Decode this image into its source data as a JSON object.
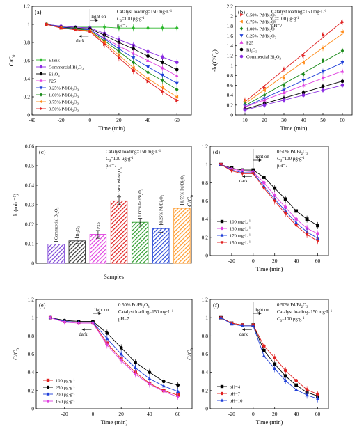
{
  "chart_data": [
    {
      "panel": "(a)",
      "type": "line",
      "xlabel": "Time (min)",
      "ylabel": "C/C0",
      "xlim": [
        -40,
        70
      ],
      "ylim": [
        0,
        1.2
      ],
      "xticks": [
        -40,
        -20,
        0,
        20,
        40,
        60
      ],
      "yticks": [
        0,
        0.2,
        0.4,
        0.6,
        0.8,
        1.0,
        1.2
      ],
      "annotations": [
        "Catalyst loading=150 mg·L⁻¹",
        "C0=100 μg·g⁻¹",
        "pH=7",
        "light on",
        "dark"
      ],
      "legend_position": "bottom-left",
      "x": [
        -30,
        -20,
        -10,
        0,
        10,
        20,
        30,
        40,
        50,
        60
      ],
      "series": [
        {
          "name": "Blank",
          "color": "#2db82d",
          "marker": "diamond",
          "values": [
            1.0,
            0.98,
            0.97,
            0.97,
            0.97,
            0.96,
            0.96,
            0.96,
            0.96,
            0.96
          ]
        },
        {
          "name": "Commercial Bi2O3",
          "color": "#8a2be2",
          "marker": "circle",
          "values": [
            1.0,
            0.98,
            0.97,
            0.96,
            0.9,
            0.83,
            0.77,
            0.7,
            0.64,
            0.58
          ]
        },
        {
          "name": "Bi2O3",
          "color": "#000000",
          "marker": "circle",
          "values": [
            1.0,
            0.97,
            0.96,
            0.95,
            0.88,
            0.8,
            0.73,
            0.65,
            0.58,
            0.5
          ]
        },
        {
          "name": "P25",
          "color": "#e040e0",
          "marker": "triangle-up",
          "values": [
            1.0,
            0.96,
            0.95,
            0.94,
            0.85,
            0.76,
            0.68,
            0.6,
            0.52,
            0.43
          ]
        },
        {
          "name": "0.25% Pd/Bi2O3",
          "color": "#1f3fd8",
          "marker": "triangle-down",
          "values": [
            1.0,
            0.97,
            0.95,
            0.94,
            0.84,
            0.73,
            0.63,
            0.53,
            0.44,
            0.35
          ]
        },
        {
          "name": "1.00% Pd/Bi2O3",
          "color": "#1a8a1a",
          "marker": "diamond",
          "values": [
            1.0,
            0.96,
            0.95,
            0.93,
            0.82,
            0.7,
            0.58,
            0.47,
            0.38,
            0.28
          ]
        },
        {
          "name": "0.75% Pd/Bi2O3",
          "color": "#ff8c1a",
          "marker": "triangle-left",
          "values": [
            1.0,
            0.96,
            0.94,
            0.93,
            0.8,
            0.66,
            0.52,
            0.4,
            0.3,
            0.2
          ]
        },
        {
          "name": "0.50% Pd/Bi2O3",
          "color": "#e02020",
          "marker": "triangle-right",
          "values": [
            1.0,
            0.96,
            0.94,
            0.92,
            0.78,
            0.63,
            0.49,
            0.37,
            0.26,
            0.16
          ]
        }
      ]
    },
    {
      "panel": "(b)",
      "type": "scatter",
      "xlabel": "Time (min)",
      "ylabel": "-ln(C/C0)",
      "xlim": [
        5,
        65
      ],
      "ylim": [
        0,
        2.2
      ],
      "xticks": [
        10,
        20,
        30,
        40,
        50,
        60
      ],
      "yticks": [
        0,
        0.2,
        0.4,
        0.6,
        0.8,
        1.0,
        1.2,
        1.4,
        1.6,
        1.8,
        2.0,
        2.2
      ],
      "annotations": [
        "Catalyst loading=150 mg·L⁻¹",
        "C0=100 μg·g⁻¹",
        "pH=7"
      ],
      "legend_position": "top-left",
      "fit_lines": true,
      "x": [
        10,
        20,
        30,
        40,
        50,
        60
      ],
      "series": [
        {
          "name": "0.50% Pd/Bi2O3",
          "color": "#e02020",
          "marker": "triangle-right",
          "values": [
            0.3,
            0.55,
            0.92,
            1.2,
            1.62,
            1.88
          ]
        },
        {
          "name": "0.75% Pd/Bi2O3",
          "color": "#ff8c1a",
          "marker": "triangle-left",
          "values": [
            0.27,
            0.5,
            0.75,
            1.06,
            1.35,
            1.68
          ]
        },
        {
          "name": "1.00% Pd/Bi2O",
          "color": "#1a8a1a",
          "marker": "diamond",
          "values": [
            0.22,
            0.4,
            0.6,
            0.82,
            1.1,
            1.3
          ]
        },
        {
          "name": "0.25% Pd/Bi2O3",
          "color": "#1f3fd8",
          "marker": "triangle-down",
          "values": [
            0.18,
            0.33,
            0.5,
            0.7,
            0.88,
            1.06
          ]
        },
        {
          "name": "P25",
          "color": "#e040e0",
          "marker": "triangle-up",
          "values": [
            0.16,
            0.3,
            0.45,
            0.6,
            0.75,
            0.88
          ]
        },
        {
          "name": "Bi2O3",
          "color": "#000000",
          "marker": "circle",
          "values": [
            0.12,
            0.23,
            0.34,
            0.45,
            0.58,
            0.68
          ]
        },
        {
          "name": "Commercial Bi2O3",
          "color": "#8a2be2",
          "marker": "circle",
          "values": [
            0.1,
            0.2,
            0.3,
            0.4,
            0.5,
            0.6
          ]
        }
      ]
    },
    {
      "panel": "(c)",
      "type": "bar",
      "xlabel": "Samples",
      "ylabel": "k (min⁻¹)",
      "ylim": [
        0,
        0.06
      ],
      "yticks": [
        0,
        0.01,
        0.02,
        0.03,
        0.04,
        0.05,
        0.06
      ],
      "annotations": [
        "Catalyst loading=150 mg·L⁻¹",
        "C0=100 μg·g⁻¹",
        "pH=7"
      ],
      "categories": [
        "Commercial Bi2O3",
        "Bi2O3",
        "P25",
        "0.50% Pd/Bi2O3",
        "1.00% Pd/Bi2O3",
        "0.25% Pd/Bi2O3",
        "0.75% Pd/Bi2O3"
      ],
      "values": [
        0.0098,
        0.0115,
        0.0148,
        0.032,
        0.021,
        0.0178,
        0.0282
      ],
      "errors": [
        0.0015,
        0.0015,
        0.002,
        0.002,
        0.002,
        0.002,
        0.002
      ],
      "colors": [
        "#7a3fd6",
        "#333333",
        "#e040e0",
        "#e02020",
        "#2a9a2a",
        "#2a4ad8",
        "#ff9a2a"
      ]
    },
    {
      "panel": "(d)",
      "type": "line",
      "xlabel": "Time (min)",
      "ylabel": "C/C0",
      "xlim": [
        -40,
        70
      ],
      "ylim": [
        0,
        1.2
      ],
      "xticks": [
        -20,
        0,
        20,
        40,
        60
      ],
      "yticks": [
        0,
        0.2,
        0.4,
        0.6,
        0.8,
        1.0,
        1.2
      ],
      "annotations": [
        "0.50% Pd/Bi2O3",
        "C0=100 μg·g⁻¹",
        "pH=7",
        "light on",
        "dark"
      ],
      "legend_position": "bottom-left",
      "x": [
        -30,
        -20,
        -10,
        0,
        10,
        20,
        30,
        40,
        50,
        60
      ],
      "series": [
        {
          "name": "100 mg·L⁻¹",
          "color": "#000000",
          "marker": "square",
          "values": [
            1.0,
            0.96,
            0.94,
            0.94,
            0.86,
            0.74,
            0.62,
            0.49,
            0.4,
            0.33
          ]
        },
        {
          "name": "130 mg·L⁻¹",
          "color": "#e040e0",
          "marker": "circle",
          "values": [
            1.0,
            0.95,
            0.93,
            0.92,
            0.8,
            0.66,
            0.53,
            0.4,
            0.3,
            0.24
          ]
        },
        {
          "name": "170 mg·L⁻¹",
          "color": "#1f3fd8",
          "marker": "triangle-up",
          "values": [
            1.0,
            0.94,
            0.91,
            0.91,
            0.76,
            0.62,
            0.49,
            0.36,
            0.26,
            0.19
          ]
        },
        {
          "name": "150 mg·L⁻¹",
          "color": "#e02020",
          "marker": "triangle-down",
          "values": [
            1.0,
            0.93,
            0.9,
            0.9,
            0.74,
            0.6,
            0.46,
            0.33,
            0.23,
            0.16
          ]
        }
      ]
    },
    {
      "panel": "(e)",
      "type": "line",
      "xlabel": "Time (min)",
      "ylabel": "C/C0",
      "xlim": [
        -40,
        70
      ],
      "ylim": [
        0,
        1.2
      ],
      "xticks": [
        -20,
        0,
        20,
        40,
        60
      ],
      "yticks": [
        0,
        0.2,
        0.4,
        0.6,
        0.8,
        1.0,
        1.2
      ],
      "annotations": [
        "0.50% Pd/Bi2O3",
        "Catalyst loading=150 mg·L⁻¹",
        "pH=7",
        "light on",
        "dark"
      ],
      "legend_position": "bottom-left",
      "x": [
        -30,
        -20,
        -10,
        0,
        10,
        20,
        30,
        40,
        50,
        60
      ],
      "series": [
        {
          "name": "100 μg·g⁻¹",
          "color": "#e02020",
          "marker": "square",
          "values": [
            1.0,
            0.96,
            0.95,
            0.95,
            0.72,
            0.55,
            0.4,
            0.28,
            0.2,
            0.15
          ]
        },
        {
          "name": "250 μg·g⁻¹",
          "color": "#000000",
          "marker": "circle",
          "values": [
            1.0,
            0.97,
            0.96,
            0.96,
            0.83,
            0.67,
            0.51,
            0.4,
            0.3,
            0.26
          ]
        },
        {
          "name": "200 μg·g⁻¹",
          "color": "#1f3fd8",
          "marker": "triangle-up",
          "values": [
            1.0,
            0.96,
            0.95,
            0.95,
            0.77,
            0.6,
            0.45,
            0.33,
            0.25,
            0.19
          ]
        },
        {
          "name": "150 μg·g⁻¹",
          "color": "#e040e0",
          "marker": "triangle-down",
          "values": [
            1.0,
            0.95,
            0.94,
            0.94,
            0.7,
            0.53,
            0.38,
            0.27,
            0.19,
            0.13
          ]
        }
      ]
    },
    {
      "panel": "(f)",
      "type": "line",
      "xlabel": "Time (min)",
      "ylabel": "C/C0",
      "xlim": [
        -40,
        70
      ],
      "ylim": [
        0,
        1.2
      ],
      "xticks": [
        -20,
        0,
        20,
        40,
        60
      ],
      "yticks": [
        0,
        0.2,
        0.4,
        0.6,
        0.8,
        1.0,
        1.2
      ],
      "annotations": [
        "0.50% Pd/Bi2O3",
        "Catalyst loading=150 mg·L⁻¹",
        "C0=100 μg·g⁻¹",
        "light on",
        "dark"
      ],
      "legend_position": "bottom-left",
      "x": [
        -30,
        -20,
        -10,
        0,
        10,
        20,
        30,
        40,
        50,
        60
      ],
      "series": [
        {
          "name": "pH=4",
          "color": "#000000",
          "marker": "square",
          "values": [
            1.0,
            0.94,
            0.92,
            0.92,
            0.64,
            0.49,
            0.36,
            0.26,
            0.18,
            0.14
          ]
        },
        {
          "name": "pH=7",
          "color": "#e02020",
          "marker": "circle",
          "values": [
            1.0,
            0.94,
            0.92,
            0.92,
            0.69,
            0.56,
            0.42,
            0.31,
            0.21,
            0.16
          ]
        },
        {
          "name": "pH=10",
          "color": "#1f3fd8",
          "marker": "triangle-up",
          "values": [
            1.0,
            0.93,
            0.91,
            0.91,
            0.58,
            0.44,
            0.31,
            0.21,
            0.15,
            0.11
          ]
        }
      ]
    }
  ]
}
